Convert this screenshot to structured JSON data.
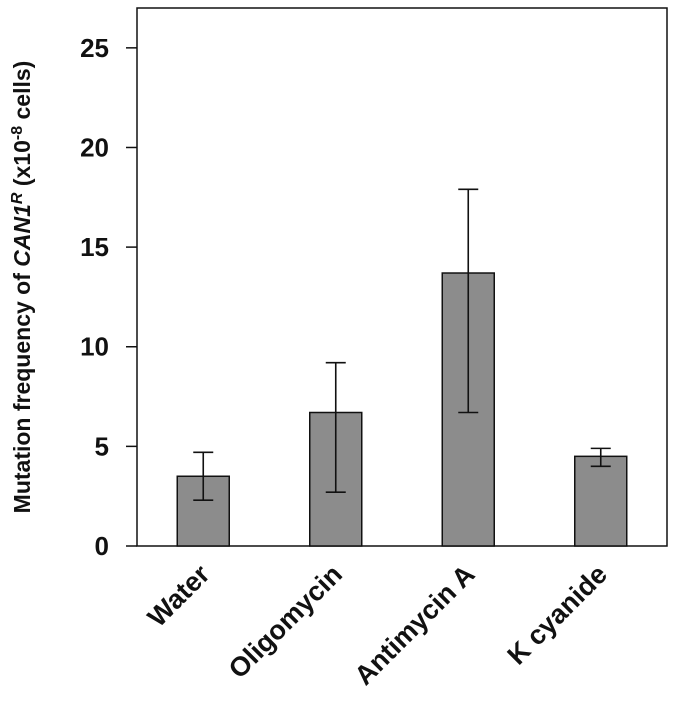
{
  "chart_data": {
    "type": "bar",
    "categories": [
      "Water",
      "Oligomycin",
      "Antimycin A",
      "K cyanide"
    ],
    "values": [
      3.5,
      6.7,
      13.7,
      4.5
    ],
    "error_low": [
      2.3,
      2.7,
      6.7,
      4.0
    ],
    "error_high": [
      4.7,
      9.2,
      17.9,
      4.9
    ],
    "ylim": [
      0,
      27
    ],
    "yticks": [
      "0",
      "5",
      "10",
      "15",
      "20",
      "25"
    ],
    "ylabel": {
      "prefix": "Mutation frequency of ",
      "gene": "CAN1",
      "gene_sup": "R",
      "middle": " (x10",
      "exp": "-8",
      "suffix": " cells)"
    },
    "bar_color": "#8c8c8c",
    "grid": false
  }
}
